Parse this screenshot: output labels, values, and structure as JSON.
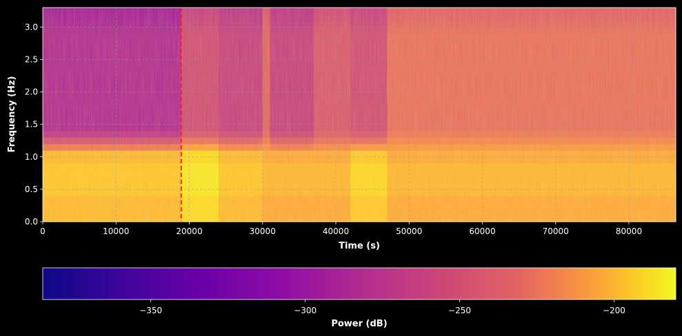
{
  "chart_data": {
    "type": "heatmap",
    "title": "",
    "xlabel": "Time (s)",
    "ylabel": "Frequency (Hz)",
    "xlim": [
      0,
      86400
    ],
    "ylim": [
      0,
      3.3
    ],
    "x_ticks": [
      0,
      10000,
      20000,
      30000,
      40000,
      50000,
      60000,
      70000,
      80000
    ],
    "x_tick_labels": [
      "0",
      "10000",
      "20000",
      "30000",
      "40000",
      "50000",
      "60000",
      "70000",
      "80000"
    ],
    "y_ticks": [
      0.0,
      0.5,
      1.0,
      1.5,
      2.0,
      2.5,
      3.0
    ],
    "y_tick_labels": [
      "0.0",
      "0.5",
      "1.0",
      "1.5",
      "2.0",
      "2.5",
      "3.0"
    ],
    "grid": true,
    "colormap": "plasma",
    "marker_line": {
      "x": 18900,
      "color": "#ff2020",
      "style": "dashed"
    },
    "colorbar": {
      "label": "Power (dB)",
      "range": [
        -385,
        -180
      ],
      "ticks": [
        -350,
        -300,
        -250,
        -200
      ],
      "tick_labels": [
        "−350",
        "−300",
        "−250",
        "−200"
      ]
    },
    "time_segments": [
      {
        "x_start": 0,
        "x_end": 18900,
        "low_band_db": -200,
        "upper_band_db": -285
      },
      {
        "x_start": 18900,
        "x_end": 24000,
        "low_band_db": -190,
        "upper_band_db": -255
      },
      {
        "x_start": 24000,
        "x_end": 30000,
        "low_band_db": -200,
        "upper_band_db": -265
      },
      {
        "x_start": 30000,
        "x_end": 31000,
        "low_band_db": -205,
        "upper_band_db": -235
      },
      {
        "x_start": 31000,
        "x_end": 37000,
        "low_band_db": -205,
        "upper_band_db": -265
      },
      {
        "x_start": 37000,
        "x_end": 42000,
        "low_band_db": -205,
        "upper_band_db": -245
      },
      {
        "x_start": 42000,
        "x_end": 47000,
        "low_band_db": -195,
        "upper_band_db": -255
      },
      {
        "x_start": 47000,
        "x_end": 86400,
        "low_band_db": -205,
        "upper_band_db": -228
      }
    ]
  },
  "colors": {
    "background": "#000000",
    "grid": "#9a9a9a",
    "text": "#ffffff"
  }
}
